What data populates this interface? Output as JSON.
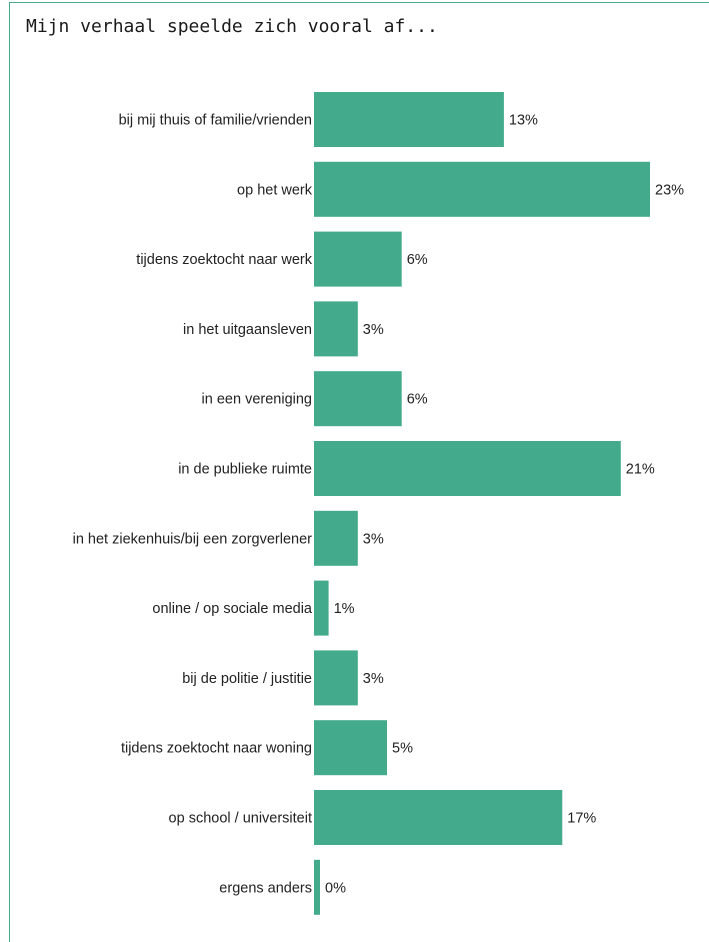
{
  "title": "Mijn verhaal speelde zich vooral af...",
  "chart_data": {
    "type": "bar",
    "orientation": "horizontal",
    "title": "Mijn verhaal speelde zich vooral af...",
    "xlabel": "",
    "ylabel": "",
    "categories": [
      "bij mij thuis of familie/vrienden",
      "op het werk",
      "tijdens zoektocht naar werk",
      "in het uitgaansleven",
      "in een vereniging",
      "in de publieke ruimte",
      "in het ziekenhuis/bij een zorgverlener",
      "online / op sociale media",
      "bij de politie / justitie",
      "tijdens zoektocht naar woning",
      "op school / universiteit",
      "ergens anders"
    ],
    "values": [
      13,
      23,
      6,
      3,
      6,
      21,
      3,
      1,
      3,
      5,
      17,
      0
    ],
    "value_labels": [
      "13%",
      "23%",
      "6%",
      "3%",
      "6%",
      "21%",
      "3%",
      "1%",
      "3%",
      "5%",
      "17%",
      "0%"
    ],
    "xlim": [
      0,
      23
    ],
    "grid": false,
    "legend": "none",
    "bar_color": "#43aa8b"
  }
}
